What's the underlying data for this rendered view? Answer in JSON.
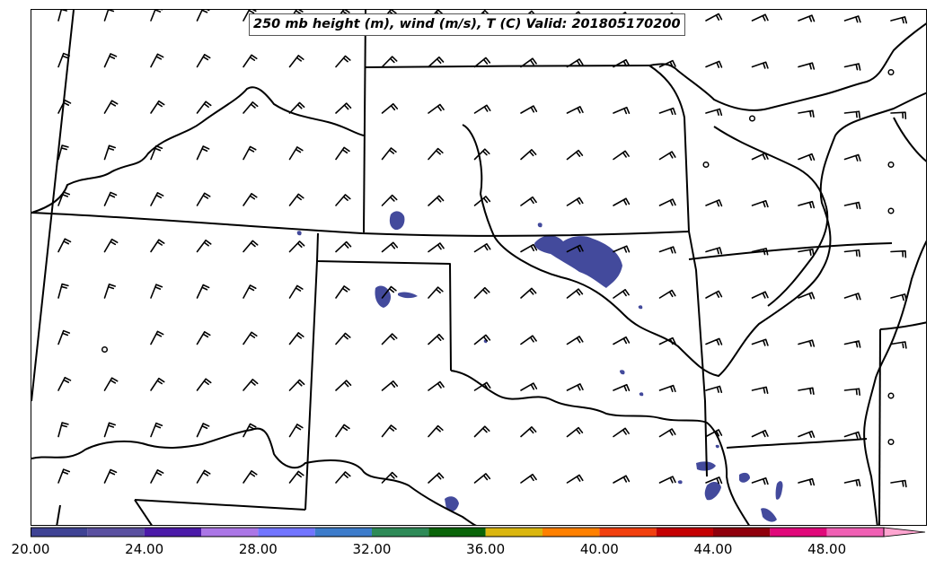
{
  "map": {
    "title": "250 mb height (m), wind (m/s), T (C) Valid: 201805170200",
    "layers": [
      "state-boundaries",
      "rivers",
      "wind-barbs",
      "shaded-wind-speed"
    ],
    "shading_color": "#434a9c"
  },
  "colorbar": {
    "tick_labels": [
      "20.00",
      "24.00",
      "28.00",
      "32.00",
      "36.00",
      "40.00",
      "44.00",
      "48.00"
    ],
    "tick_values": [
      20,
      24,
      28,
      32,
      36,
      40,
      44,
      48
    ],
    "range": [
      20,
      52
    ],
    "bins": [
      {
        "from": 20,
        "to": 22,
        "color": "#3f4394"
      },
      {
        "from": 22,
        "to": 24,
        "color": "#5a50a0"
      },
      {
        "from": 24,
        "to": 26,
        "color": "#4b1aa8"
      },
      {
        "from": 26,
        "to": 28,
        "color": "#ab76e6"
      },
      {
        "from": 28,
        "to": 30,
        "color": "#7275ff"
      },
      {
        "from": 30,
        "to": 32,
        "color": "#3d7ccb"
      },
      {
        "from": 32,
        "to": 34,
        "color": "#2e8a57"
      },
      {
        "from": 34,
        "to": 36,
        "color": "#0a6409"
      },
      {
        "from": 36,
        "to": 38,
        "color": "#dab60f"
      },
      {
        "from": 38,
        "to": 40,
        "color": "#ff8000"
      },
      {
        "from": 40,
        "to": 42,
        "color": "#f2400f"
      },
      {
        "from": 42,
        "to": 44,
        "color": "#c40002"
      },
      {
        "from": 44,
        "to": 46,
        "color": "#8f000c"
      },
      {
        "from": 46,
        "to": 48,
        "color": "#e0087a"
      },
      {
        "from": 48,
        "to": 50,
        "color": "#f060b4"
      },
      {
        "from": 50,
        "to": 52,
        "color": "#ffa5d0"
      }
    ],
    "extend": "max"
  }
}
